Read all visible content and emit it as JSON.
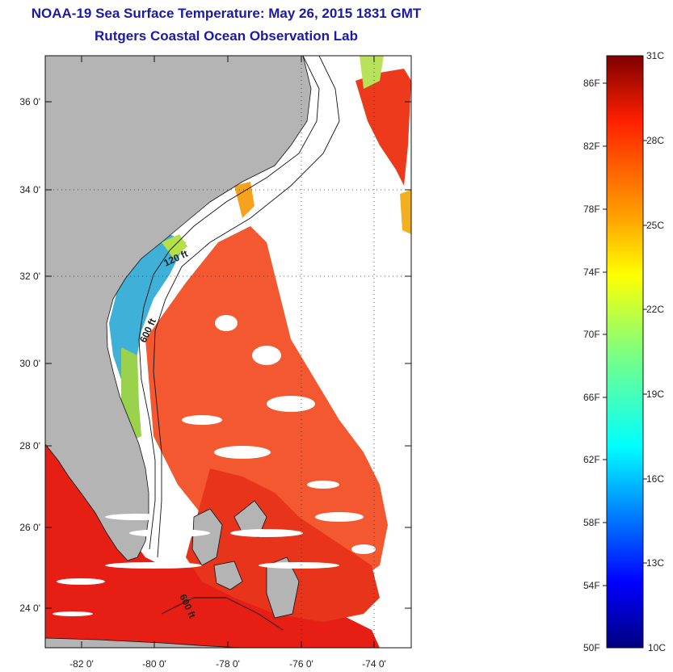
{
  "title": "NOAA-19 Sea Surface Temperature:  May 26, 2015 1831 GMT",
  "subtitle": "Rutgers Coastal Ocean Observation Lab",
  "map": {
    "lon_ticks": [
      "-82 0'",
      "-80 0'",
      "-78 0'",
      "-76 0'",
      "-74 0'"
    ],
    "lat_ticks": [
      "36 0'",
      "34 0'",
      "32 0'",
      "30 0'",
      "28 0'",
      "26 0'",
      "24 0'"
    ],
    "contour_labels": [
      "120 ft",
      "600 ft",
      "600 ft"
    ],
    "colors": {
      "land": "#b4b4b4",
      "warm_water": "#f24a1e",
      "hot_water": "#e61e14",
      "cool_water": "#2aa8e0",
      "background": "#ffffff"
    }
  },
  "colorbar": {
    "fahrenheit": [
      "86F",
      "82F",
      "78F",
      "74F",
      "70F",
      "66F",
      "62F",
      "58F",
      "54F",
      "50F"
    ],
    "celsius": [
      "31C",
      "28C",
      "25C",
      "22C",
      "19C",
      "16C",
      "13C",
      "10C"
    ],
    "range_f": [
      50,
      88
    ],
    "range_c": [
      10,
      31
    ],
    "colormap": "jet"
  }
}
